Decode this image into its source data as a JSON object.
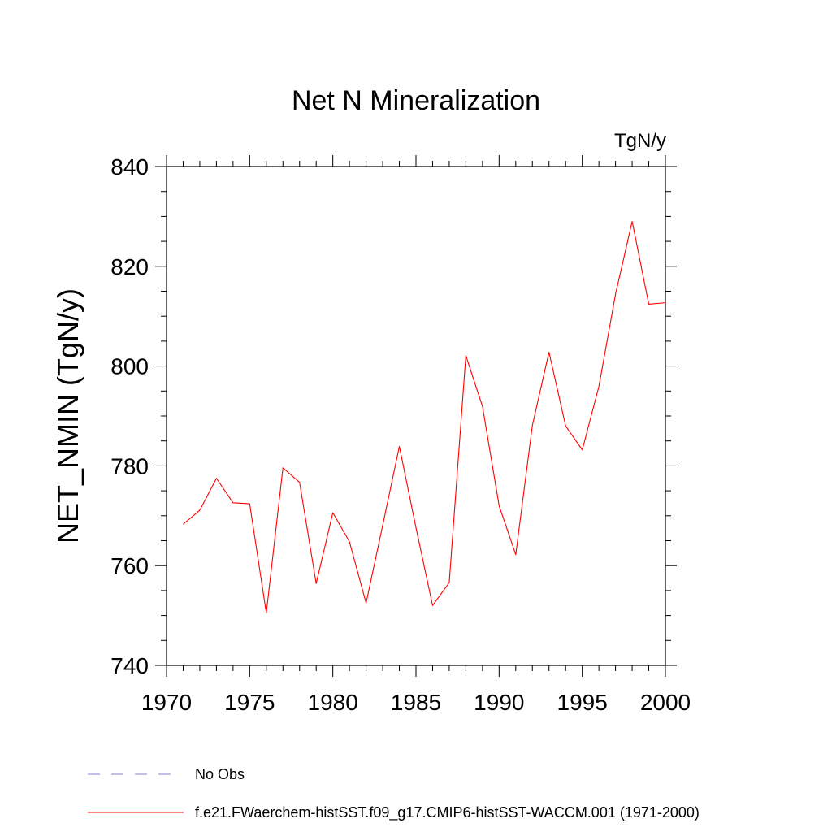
{
  "chart_data": {
    "type": "line",
    "title": "Net N Mineralization",
    "units_label": "TgN/y",
    "xlabel": "",
    "ylabel": "NET_NMIN  (TgN/y)",
    "xlim": [
      1970,
      2000
    ],
    "ylim": [
      740,
      840
    ],
    "x_ticks": [
      "1970",
      "1975",
      "1980",
      "1985",
      "1990",
      "1995",
      "2000"
    ],
    "y_ticks": [
      "740",
      "760",
      "780",
      "800",
      "820",
      "840"
    ],
    "grid": false,
    "legend_position": "bottom",
    "colors": {
      "series": "#ff0000",
      "obs": "#8a7fc8",
      "axis": "#000000"
    },
    "series": [
      {
        "name": "f.e21.FWaerchem-histSST.f09_g17.CMIP6-histSST-WACCM.001 (1971-2000)",
        "x": [
          1971,
          1972,
          1973,
          1974,
          1975,
          1976,
          1977,
          1978,
          1979,
          1980,
          1981,
          1982,
          1983,
          1984,
          1985,
          1986,
          1987,
          1988,
          1989,
          1990,
          1991,
          1992,
          1993,
          1994,
          1995,
          1996,
          1997,
          1998,
          1999,
          2000
        ],
        "values": [
          768.3,
          771.1,
          777.5,
          772.6,
          772.4,
          750.5,
          779.6,
          776.7,
          756.4,
          770.6,
          764.8,
          752.5,
          768.1,
          783.9,
          767.6,
          752.0,
          756.6,
          802.1,
          791.9,
          772.0,
          762.2,
          788.1,
          802.8,
          788.0,
          783.2,
          795.9,
          814.4,
          829.0,
          812.4,
          812.7
        ]
      }
    ],
    "legend": [
      {
        "label": "No Obs",
        "style": "dashed",
        "color": "#8a7fc8"
      },
      {
        "label": "f.e21.FWaerchem-histSST.f09_g17.CMIP6-histSST-WACCM.001 (1971-2000)",
        "style": "solid",
        "color": "#ff0000"
      }
    ]
  }
}
